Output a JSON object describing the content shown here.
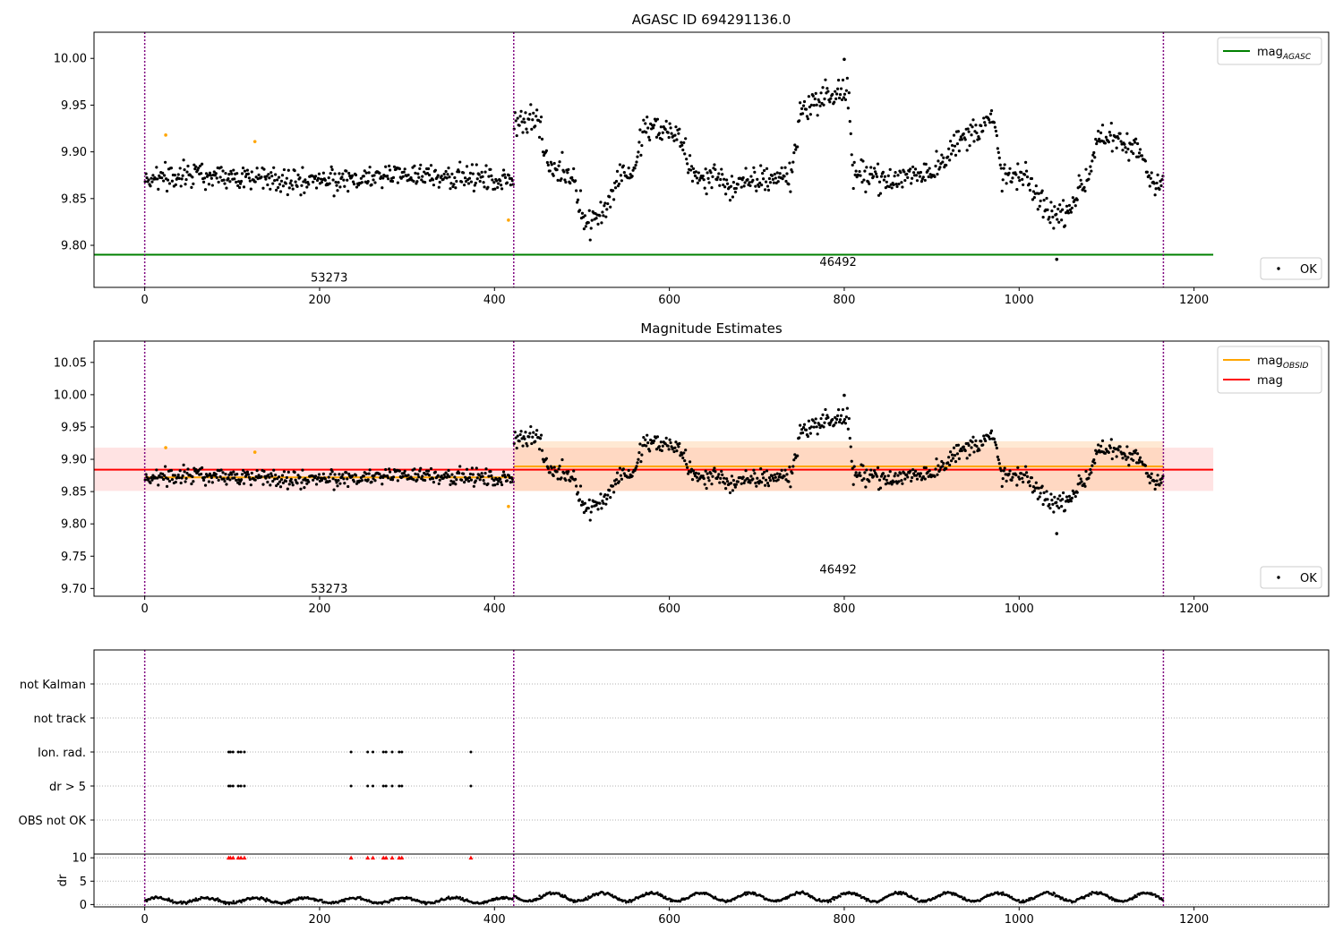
{
  "chart_data": [
    {
      "type": "scatter",
      "title": "AGASC ID 694291136.0",
      "xlabel": "",
      "ylabel": "",
      "xlim": [
        -58,
        1354
      ],
      "ylim": [
        9.755,
        10.028
      ],
      "xticks": [
        0,
        200,
        400,
        600,
        800,
        1000,
        1200
      ],
      "yticks": [
        9.8,
        9.85,
        9.9,
        9.95,
        10.0
      ],
      "ytick_labels": [
        "9.80",
        "9.85",
        "9.90",
        "9.95",
        "10.00"
      ],
      "obs_boundaries": [
        0,
        422,
        1165
      ],
      "obs_labels": [
        {
          "text": "53273",
          "x": 211,
          "y": 9.765
        },
        {
          "text": "46492",
          "x": 793,
          "y": 9.782
        }
      ],
      "hlines": [
        {
          "name": "mag_AGASC",
          "y": 9.79,
          "x0": -58,
          "x1": 1222,
          "color": "#008000"
        }
      ],
      "legend_lines": [
        {
          "label": "mag",
          "sub": "AGASC",
          "color": "#008000"
        }
      ],
      "legend_points": [
        {
          "label": "OK",
          "color": "#000000"
        }
      ],
      "segments": [
        {
          "x0": 0,
          "x1": 422,
          "base": 9.872,
          "amp": 0.017,
          "kind": "flat"
        },
        {
          "x0": 422,
          "x1": 1165,
          "base": 9.888,
          "amp": 0.022,
          "kind": "var"
        }
      ],
      "outliers": [
        {
          "x": 24,
          "y": 9.918,
          "color": "#ffa500"
        },
        {
          "x": 126,
          "y": 9.911,
          "color": "#ffa500"
        },
        {
          "x": 416,
          "y": 9.827,
          "color": "#ffa500"
        },
        {
          "x": 800,
          "y": 9.999,
          "color": "#000000"
        },
        {
          "x": 1043,
          "y": 9.785,
          "color": "#000000"
        }
      ]
    },
    {
      "type": "scatter",
      "title": "Magnitude Estimates",
      "xlabel": "",
      "ylabel": "",
      "xlim": [
        -58,
        1354
      ],
      "ylim": [
        9.688,
        10.083
      ],
      "xticks": [
        0,
        200,
        400,
        600,
        800,
        1000,
        1200
      ],
      "yticks": [
        9.7,
        9.75,
        9.8,
        9.85,
        9.9,
        9.95,
        10.0,
        10.05
      ],
      "ytick_labels": [
        "9.70",
        "9.75",
        "9.80",
        "9.85",
        "9.90",
        "9.95",
        "10.00",
        "10.05"
      ],
      "obs_boundaries": [
        0,
        422,
        1165
      ],
      "obs_labels": [
        {
          "text": "53273",
          "x": 211,
          "y": 9.699
        },
        {
          "text": "46492",
          "x": 793,
          "y": 9.729
        }
      ],
      "bands": [
        {
          "x0": -58,
          "x1": 1222,
          "y0": 9.851,
          "y1": 9.918,
          "color": "#ffb0b0",
          "opacity": 0.35
        },
        {
          "x0": 422,
          "x1": 1165,
          "y0": 9.851,
          "y1": 9.928,
          "color": "#ffc890",
          "opacity": 0.4
        }
      ],
      "hlines": [
        {
          "name": "mag",
          "y": 9.884,
          "x0": -58,
          "x1": 1222,
          "color": "#ff0000"
        },
        {
          "name": "mag_OBSID_1",
          "y": 9.872,
          "x0": 0,
          "x1": 422,
          "color": "#ffa500"
        },
        {
          "name": "mag_OBSID_2",
          "y": 9.889,
          "x0": 422,
          "x1": 1165,
          "color": "#ffa500"
        }
      ],
      "legend_lines": [
        {
          "label": "mag",
          "sub": "OBSID",
          "color": "#ffa500"
        },
        {
          "label": "mag",
          "sub": "",
          "color": "#ff0000"
        }
      ],
      "legend_points": [
        {
          "label": "OK",
          "color": "#000000"
        }
      ],
      "segments": [
        {
          "x0": 0,
          "x1": 422,
          "base": 9.872,
          "amp": 0.017,
          "kind": "flat"
        },
        {
          "x0": 422,
          "x1": 1165,
          "base": 9.888,
          "amp": 0.022,
          "kind": "var"
        }
      ],
      "outliers": [
        {
          "x": 24,
          "y": 9.918,
          "color": "#ffa500"
        },
        {
          "x": 126,
          "y": 9.911,
          "color": "#ffa500"
        },
        {
          "x": 416,
          "y": 9.827,
          "color": "#ffa500"
        },
        {
          "x": 800,
          "y": 9.999,
          "color": "#000000"
        },
        {
          "x": 1043,
          "y": 9.785,
          "color": "#000000"
        }
      ]
    },
    {
      "type": "scatter",
      "title": "",
      "xlim": [
        -58,
        1354
      ],
      "categories": [
        "not Kalman",
        "not track",
        "Ion. rad.",
        "dr > 5",
        "OBS not OK"
      ],
      "obs_boundaries": [
        0,
        422,
        1165
      ],
      "flags": {
        "Ion. rad.": [
          96,
          98,
          101,
          107,
          110,
          114,
          236,
          255,
          261,
          273,
          276,
          283,
          291,
          294,
          373
        ],
        "dr > 5": [
          96,
          98,
          101,
          107,
          110,
          114,
          236,
          255,
          261,
          273,
          276,
          283,
          291,
          294,
          373
        ]
      }
    },
    {
      "type": "line",
      "title": "",
      "ylabel": "dr",
      "xlim": [
        -58,
        1354
      ],
      "ylim": [
        -0.5,
        10.8
      ],
      "xticks": [
        0,
        200,
        400,
        600,
        800,
        1000,
        1200
      ],
      "yticks": [
        0,
        5,
        10
      ],
      "ytick_labels": [
        "0",
        "5",
        "10"
      ],
      "obs_boundaries": [
        0,
        422,
        1165
      ],
      "dr_capped_x": [
        96,
        98,
        101,
        107,
        110,
        114,
        236,
        255,
        261,
        273,
        276,
        283,
        291,
        294,
        373
      ],
      "dr_capped_value": 10
    }
  ],
  "colors": {
    "points": "#000000",
    "agasc": "#008000",
    "obsid": "#ffa500",
    "mag": "#ff0000",
    "obs_boundary": "#800080",
    "flag_red": "#ff0000"
  }
}
